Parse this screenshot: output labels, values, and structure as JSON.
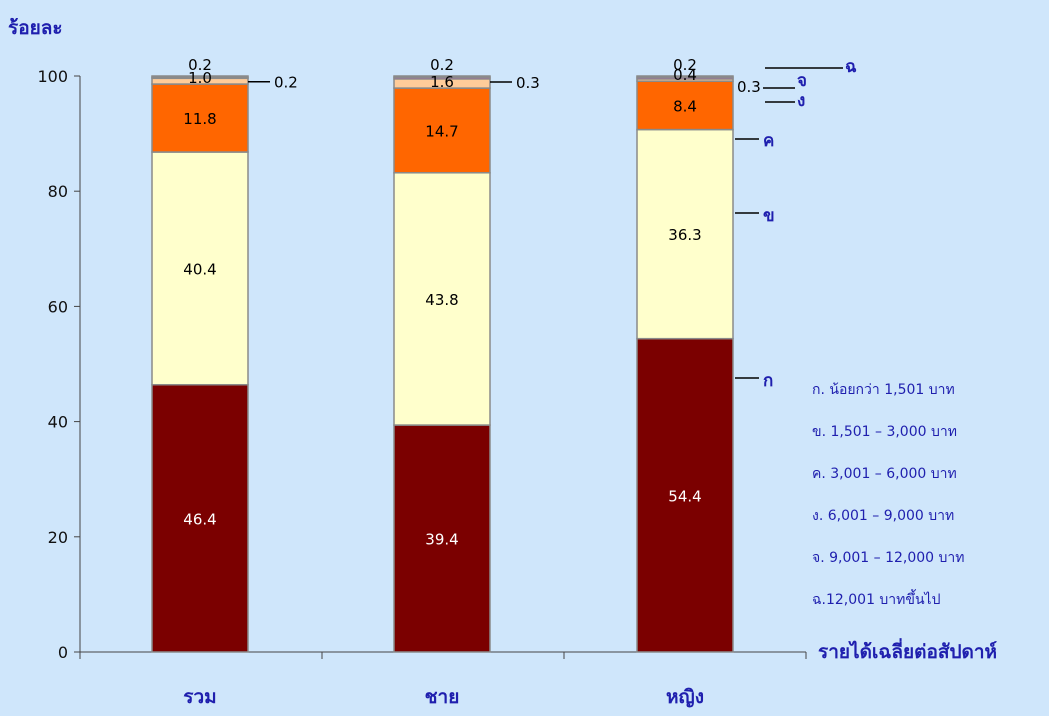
{
  "chart_data": {
    "type": "bar",
    "stacked": true,
    "ylabel": "ร้อยละ",
    "xlabel": "รายได้เฉลี่ยต่อสัปดาห์",
    "ylim": [
      0,
      100
    ],
    "yticks": [
      "0",
      "20",
      "40",
      "60",
      "80",
      "100"
    ],
    "categories": [
      "รวม",
      "ชาย",
      "หญิง"
    ],
    "series": [
      {
        "tag": "ก",
        "name": "ก. น้อยกว่า 1,501 บาท",
        "color": "#7b0000",
        "label_color": "#ffffff",
        "values": [
          46.4,
          39.4,
          54.4
        ],
        "labels": [
          "46.4",
          "39.4",
          "54.4"
        ]
      },
      {
        "tag": "ข",
        "name": "ข. 1,501 – 3,000 บาท",
        "color": "#ffffcc",
        "label_color": "#000000",
        "values": [
          40.4,
          43.8,
          36.3
        ],
        "labels": [
          "40.4",
          "43.8",
          "36.3"
        ]
      },
      {
        "tag": "ค",
        "name": "ค. 3,001 – 6,000 บาท",
        "color": "#ff6600",
        "label_color": "#000000",
        "values": [
          11.8,
          14.7,
          8.4
        ],
        "labels": [
          "11.8",
          "14.7",
          "8.4"
        ]
      },
      {
        "tag": "ง",
        "name": "ง. 6,001 – 9,000 บาท",
        "color": "#ffcc99",
        "label_color": "#000000",
        "values": [
          1.0,
          1.6,
          0.4
        ],
        "labels": [
          "1.0",
          "1.6",
          "0.4"
        ]
      },
      {
        "tag": "จ",
        "name": "จ. 9,001 – 12,000 บาท",
        "color": "#cc33cc",
        "label_color": "#000000",
        "values": [
          0.2,
          0.3,
          0.3
        ],
        "labels": [
          "0.2",
          "0.3",
          "0.3"
        ]
      },
      {
        "tag": "ฉ",
        "name": "ฉ.12,001 บาทขึ้นไป",
        "color": "#0000cc",
        "label_color": "#000000",
        "values": [
          0.2,
          0.2,
          0.2
        ],
        "labels": [
          "0.2",
          "0.2",
          "0.2"
        ]
      }
    ],
    "legend_position": "right",
    "grid": false
  }
}
